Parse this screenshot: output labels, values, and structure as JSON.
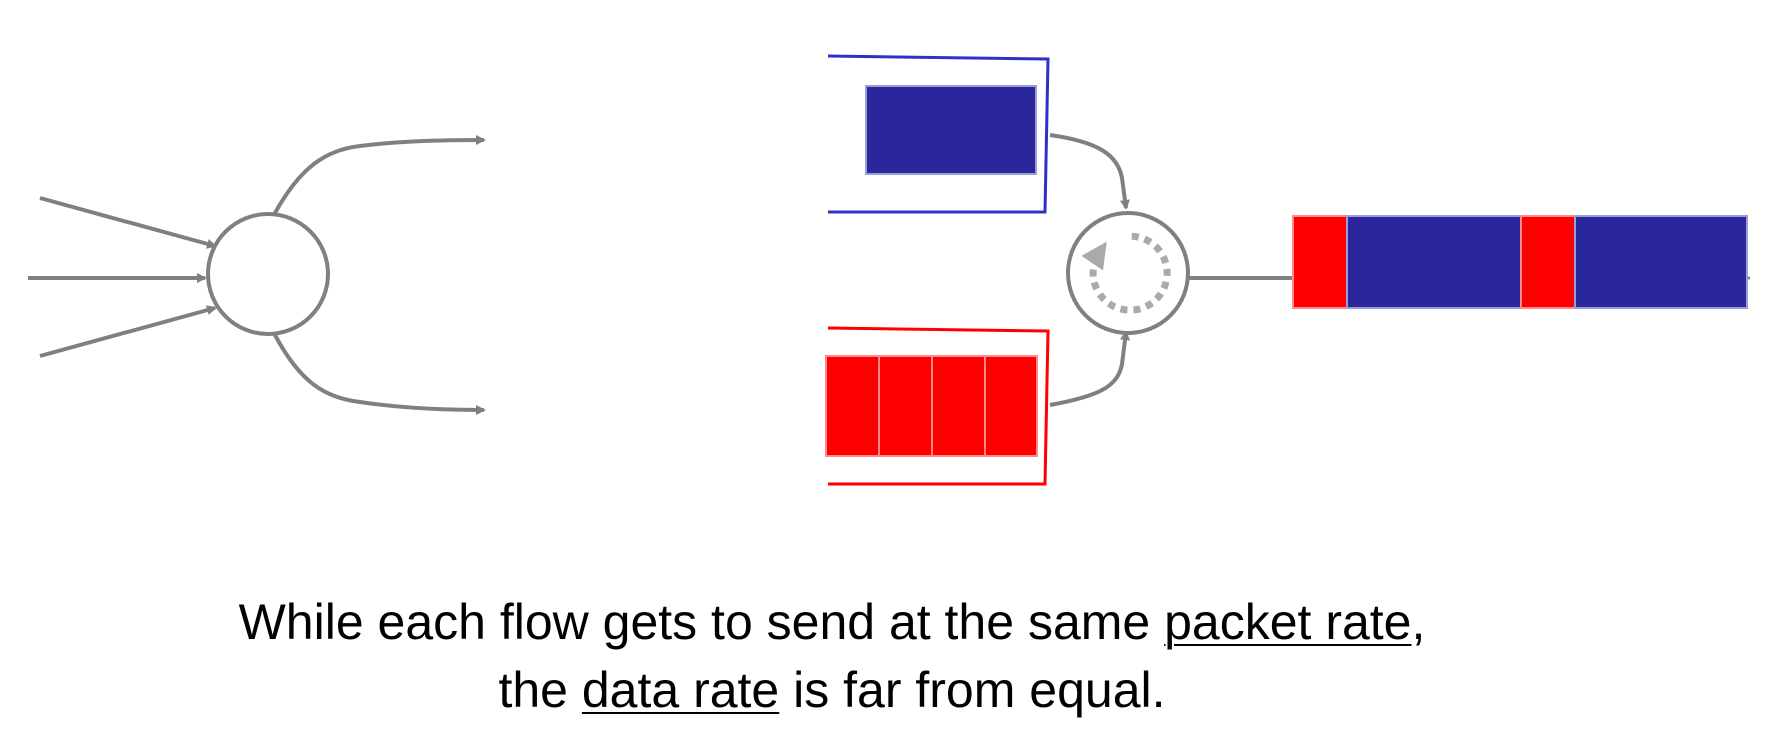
{
  "colors": {
    "blue_flow": "#29279b",
    "blue_queue_outline": "#3030c8",
    "red_flow": "#ff0000",
    "wire_gray": "#808080",
    "scheduler_dots": "#aaaaaa"
  },
  "icons": {
    "scheduler": "round-robin-circular-arrow-icon"
  },
  "caption": {
    "line1_start": "While each flow gets to send at the same ",
    "line1_underlined": "packet rate",
    "line1_end": ",",
    "line2_start": "the ",
    "line2_underlined": "data rate",
    "line2_end": " is far from equal."
  }
}
